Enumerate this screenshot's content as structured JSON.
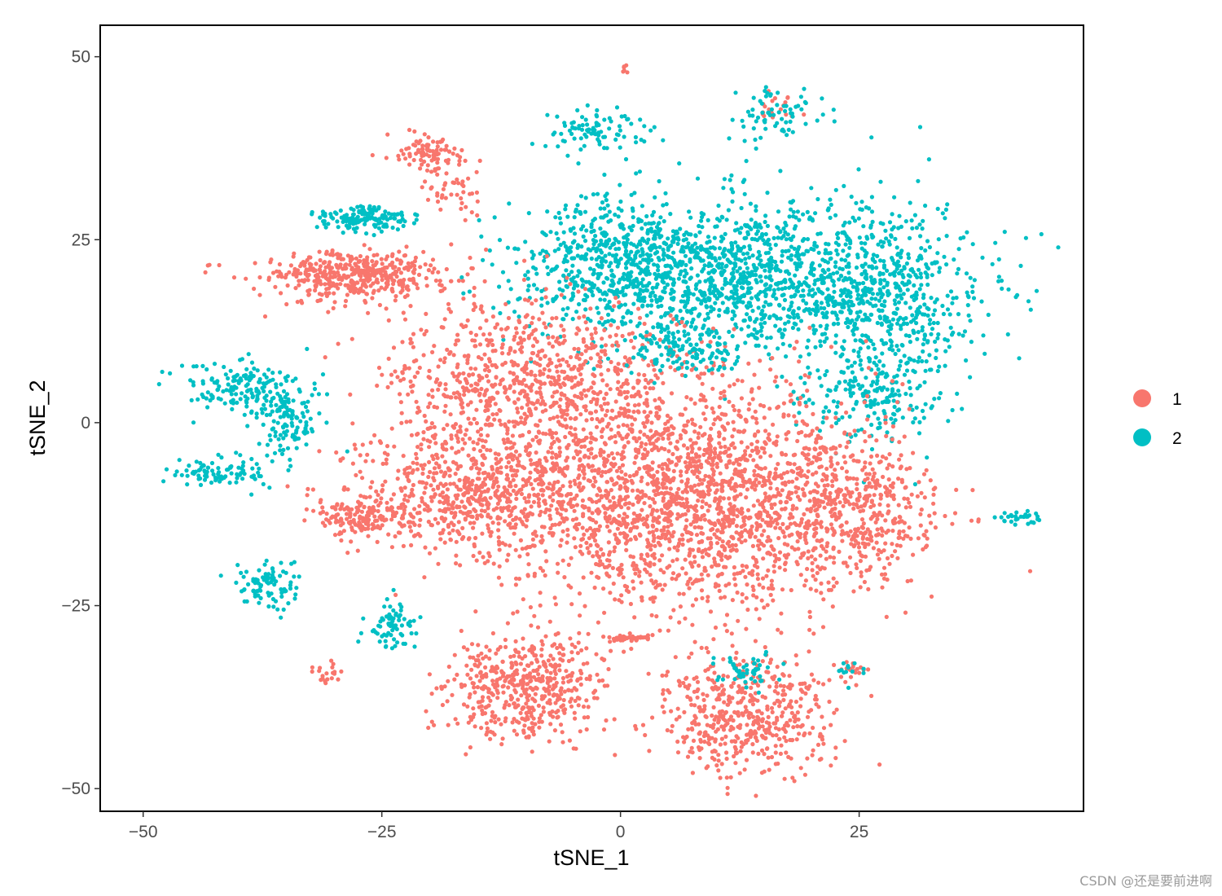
{
  "chart_data": {
    "type": "scatter",
    "xlabel": "tSNE_1",
    "ylabel": "tSNE_2",
    "xlim": [
      -54.5,
      48.5
    ],
    "ylim": [
      -53.1,
      54.3
    ],
    "x_ticks": [
      -50,
      -25,
      0,
      25
    ],
    "x_tick_labels": [
      "−50",
      "−25",
      "0",
      "25"
    ],
    "y_ticks": [
      -50,
      -25,
      0,
      25,
      50
    ],
    "y_tick_labels": [
      "−50",
      "−25",
      "0",
      "25",
      "50"
    ],
    "grid": false,
    "legend_position": "right",
    "legend": [
      {
        "label": "1",
        "color": "#F8766D"
      },
      {
        "label": "2",
        "color": "#00BFC4"
      }
    ],
    "clusters": [
      {
        "series": "2",
        "x": 13,
        "y": 20,
        "sx": 12,
        "sy": 6,
        "n": 1300
      },
      {
        "series": "2",
        "x": 28,
        "y": 15,
        "sx": 6,
        "sy": 9,
        "n": 500
      },
      {
        "series": "2",
        "x": -1,
        "y": 22,
        "sx": 6,
        "sy": 5,
        "n": 400
      },
      {
        "series": "2",
        "x": 27,
        "y": 3,
        "sx": 4,
        "sy": 3,
        "n": 120
      },
      {
        "series": "1",
        "x": 8,
        "y": -10,
        "sx": 11,
        "sy": 9,
        "n": 2000
      },
      {
        "series": "1",
        "x": -9,
        "y": 5,
        "sx": 9,
        "sy": 7,
        "n": 900
      },
      {
        "series": "1",
        "x": -15,
        "y": -10,
        "sx": 8,
        "sy": 5,
        "n": 700
      },
      {
        "series": "1",
        "x": 25,
        "y": -12,
        "sx": 5,
        "sy": 5,
        "n": 350
      },
      {
        "series": "1",
        "x": -28,
        "y": -13,
        "sx": 3,
        "sy": 1.5,
        "n": 150
      },
      {
        "series": "1",
        "x": -10,
        "y": -36,
        "sx": 5,
        "sy": 4,
        "n": 500
      },
      {
        "series": "1",
        "x": 13,
        "y": -40,
        "sx": 5,
        "sy": 4.5,
        "n": 500
      },
      {
        "series": "1",
        "x": -28,
        "y": 20,
        "sx": 6,
        "sy": 2,
        "n": 450
      },
      {
        "series": "1",
        "x": -20,
        "y": 37,
        "sx": 2,
        "sy": 1.5,
        "n": 90
      },
      {
        "series": "1",
        "x": -18,
        "y": 32,
        "sx": 2,
        "sy": 2,
        "n": 45
      },
      {
        "series": "1",
        "x": 0.5,
        "y": -29.5,
        "sx": 1.5,
        "sy": 0.3,
        "n": 40
      },
      {
        "series": "1",
        "x": -31,
        "y": -34,
        "sx": 1,
        "sy": 1,
        "n": 20
      },
      {
        "series": "1",
        "x": 24,
        "y": -34,
        "sx": 1,
        "sy": 1,
        "n": 20
      },
      {
        "series": "1",
        "x": 16,
        "y": 43,
        "sx": 1.5,
        "sy": 1,
        "n": 20
      },
      {
        "series": "1",
        "x": 0.5,
        "y": 48.5,
        "sx": 0.2,
        "sy": 0.6,
        "n": 6
      },
      {
        "series": "2",
        "x": -27,
        "y": 28,
        "sx": 3,
        "sy": 1,
        "n": 150
      },
      {
        "series": "2",
        "x": -40,
        "y": 5,
        "sx": 4,
        "sy": 2,
        "n": 150
      },
      {
        "series": "2",
        "x": -35,
        "y": 0,
        "sx": 2,
        "sy": 3,
        "n": 120
      },
      {
        "series": "2",
        "x": -42,
        "y": -7,
        "sx": 3,
        "sy": 1.2,
        "n": 90
      },
      {
        "series": "2",
        "x": -37,
        "y": -22,
        "sx": 2,
        "sy": 2,
        "n": 90
      },
      {
        "series": "2",
        "x": -24,
        "y": -28,
        "sx": 1.5,
        "sy": 2,
        "n": 70
      },
      {
        "series": "2",
        "x": -3,
        "y": 40,
        "sx": 3,
        "sy": 2,
        "n": 90
      },
      {
        "series": "2",
        "x": 16,
        "y": 42,
        "sx": 3,
        "sy": 2.5,
        "n": 70
      },
      {
        "series": "2",
        "x": 13,
        "y": -34,
        "sx": 2,
        "sy": 1.5,
        "n": 50
      },
      {
        "series": "2",
        "x": 42,
        "y": -13,
        "sx": 1.3,
        "sy": 0.6,
        "n": 30
      },
      {
        "series": "2",
        "x": 24,
        "y": -34,
        "sx": 1,
        "sy": 1,
        "n": 12
      },
      {
        "series": "2",
        "x": 7,
        "y": 10,
        "sx": 4,
        "sy": 2,
        "n": 120
      }
    ]
  },
  "watermark": "CSDN @还是要前进啊"
}
